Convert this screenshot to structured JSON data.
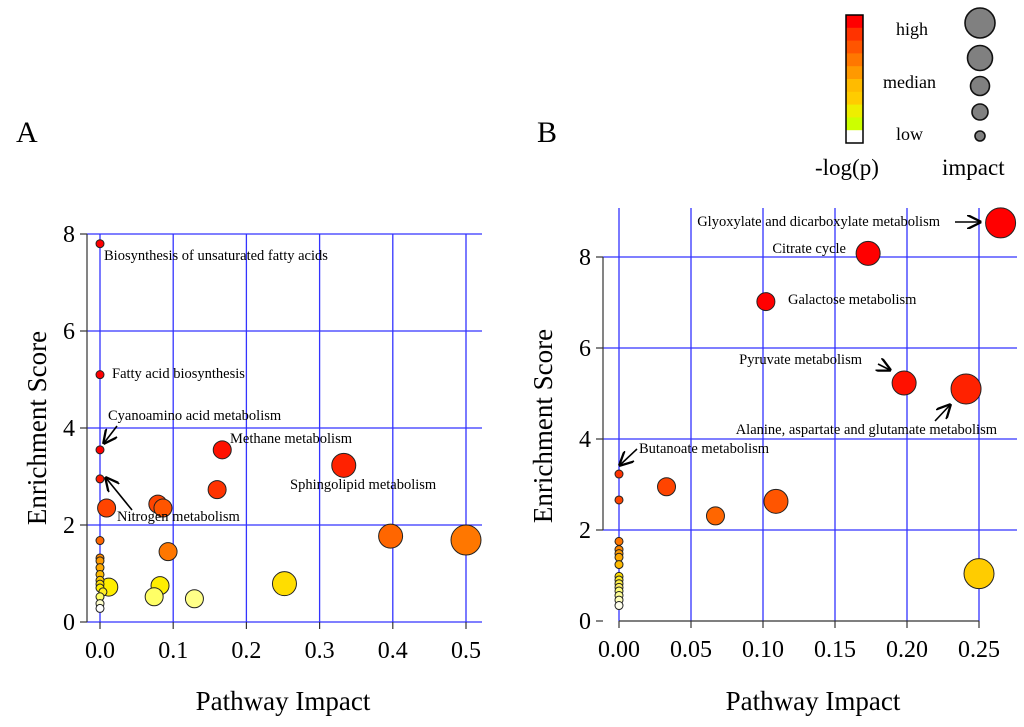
{
  "figure": {
    "legend": {
      "color_title": "-log(p)",
      "size_title": "impact",
      "color_levels": [
        "high",
        "median",
        "low"
      ],
      "color_scale": [
        "#ff0000",
        "#ff3300",
        "#ff5500",
        "#ff7700",
        "#ff9900",
        "#ffbb00",
        "#ffcc00",
        "#eeee00",
        "#ccff00",
        "#ffffff"
      ],
      "circle_fill": "#808080",
      "size_levels": 5
    },
    "gridline_color": "#3333ff"
  },
  "chart_data": [
    {
      "type": "scatter",
      "panel": "A",
      "xlabel": "Pathway Impact",
      "ylabel": "Enrichment Score",
      "xlim": [
        0,
        0.5
      ],
      "ylim": [
        0,
        8
      ],
      "x_ticks": [
        "0.0",
        "0.1",
        "0.2",
        "0.3",
        "0.4",
        "0.5"
      ],
      "x_tick_values": [
        0,
        0.1,
        0.2,
        0.3,
        0.4,
        0.5
      ],
      "y_ticks": [
        "0",
        "2",
        "4",
        "6",
        "8"
      ],
      "y_tick_values": [
        0,
        2,
        4,
        6,
        8
      ],
      "grid": true,
      "points": [
        {
          "x": 0.0,
          "y": 7.8,
          "color": "#ff0000",
          "impact_size": 1,
          "label": "Biosynthesis of unsaturated fatty acids"
        },
        {
          "x": 0.0,
          "y": 5.1,
          "color": "#ff0000",
          "impact_size": 1,
          "label": "Fatty acid biosynthesis"
        },
        {
          "x": 0.0,
          "y": 3.55,
          "color": "#ff0000",
          "impact_size": 1,
          "label": "Cyanoamino acid metabolism"
        },
        {
          "x": 0.0,
          "y": 2.95,
          "color": "#ff1a00",
          "impact_size": 1,
          "label": "Nitrogen metabolism"
        },
        {
          "x": 0.009,
          "y": 2.35,
          "color": "#ff4400",
          "impact_size": 2
        },
        {
          "x": 0.0,
          "y": 1.68,
          "color": "#ff6600",
          "impact_size": 1
        },
        {
          "x": 0.0,
          "y": 1.32,
          "color": "#ff8800",
          "impact_size": 1
        },
        {
          "x": 0.0,
          "y": 1.26,
          "color": "#ff9900",
          "impact_size": 1
        },
        {
          "x": 0.0,
          "y": 1.12,
          "color": "#ffaa00",
          "impact_size": 1
        },
        {
          "x": 0.0,
          "y": 0.98,
          "color": "#ffbb00",
          "impact_size": 1
        },
        {
          "x": 0.0,
          "y": 0.86,
          "color": "#ffcc00",
          "impact_size": 1
        },
        {
          "x": 0.0,
          "y": 0.78,
          "color": "#ffdd00",
          "impact_size": 1
        },
        {
          "x": 0.0,
          "y": 0.7,
          "color": "#ffee00",
          "impact_size": 1
        },
        {
          "x": 0.012,
          "y": 0.72,
          "color": "#ffee00",
          "impact_size": 2
        },
        {
          "x": 0.004,
          "y": 0.62,
          "color": "#ffee22",
          "impact_size": 1
        },
        {
          "x": 0.0,
          "y": 0.52,
          "color": "#ffff66",
          "impact_size": 1
        },
        {
          "x": 0.0,
          "y": 0.38,
          "color": "#ffffcc",
          "impact_size": 1
        },
        {
          "x": 0.0,
          "y": 0.28,
          "color": "#ffffff",
          "impact_size": 1
        },
        {
          "x": 0.079,
          "y": 2.43,
          "color": "#ff4400",
          "impact_size": 2
        },
        {
          "x": 0.086,
          "y": 2.35,
          "color": "#ff5500",
          "impact_size": 2
        },
        {
          "x": 0.093,
          "y": 1.45,
          "color": "#ff7700",
          "impact_size": 2
        },
        {
          "x": 0.082,
          "y": 0.75,
          "color": "#ffee00",
          "impact_size": 2
        },
        {
          "x": 0.074,
          "y": 0.52,
          "color": "#ffff66",
          "impact_size": 2
        },
        {
          "x": 0.129,
          "y": 0.48,
          "color": "#ffff88",
          "impact_size": 2
        },
        {
          "x": 0.167,
          "y": 3.55,
          "color": "#ff1100",
          "impact_size": 2,
          "label": "Methane metabolism"
        },
        {
          "x": 0.16,
          "y": 2.73,
          "color": "#ff3300",
          "impact_size": 2
        },
        {
          "x": 0.252,
          "y": 0.79,
          "color": "#ffdd00",
          "impact_size": 3
        },
        {
          "x": 0.333,
          "y": 3.23,
          "color": "#ff2200",
          "impact_size": 3,
          "label": "Sphingolipid metabolism"
        },
        {
          "x": 0.397,
          "y": 1.77,
          "color": "#ff6600",
          "impact_size": 3
        },
        {
          "x": 0.5,
          "y": 1.69,
          "color": "#ff7700",
          "impact_size": 4
        }
      ],
      "annotations": [
        {
          "text": "Biosynthesis of unsaturated fatty acids",
          "arrow": false
        },
        {
          "text": "Fatty acid biosynthesis",
          "arrow": false
        },
        {
          "text": "Cyanoamino acid metabolism",
          "arrow": true
        },
        {
          "text": "Methane metabolism",
          "arrow": false
        },
        {
          "text": "Sphingolipid metabolism",
          "arrow": false
        },
        {
          "text": "Nitrogen metabolism",
          "arrow": true
        }
      ]
    },
    {
      "type": "scatter",
      "panel": "B",
      "xlabel": "Pathway Impact",
      "ylabel": "Enrichment Score",
      "xlim": [
        0,
        0.25
      ],
      "ylim": [
        0,
        8
      ],
      "x_ticks": [
        "0.00",
        "0.05",
        "0.10",
        "0.15",
        "0.20",
        "0.25"
      ],
      "x_tick_values": [
        0,
        0.05,
        0.1,
        0.15,
        0.2,
        0.25
      ],
      "y_ticks": [
        "0",
        "2",
        "4",
        "6",
        "8"
      ],
      "y_tick_values": [
        0,
        2,
        4,
        6,
        8
      ],
      "grid": true,
      "points": [
        {
          "x": 0.265,
          "y": 8.75,
          "color": "#ff0000",
          "impact_size": 4,
          "label": "Glyoxylate and dicarboxylate metabolism"
        },
        {
          "x": 0.173,
          "y": 8.08,
          "color": "#ff0000",
          "impact_size": 3,
          "label": "Citrate cycle"
        },
        {
          "x": 0.102,
          "y": 7.02,
          "color": "#ff0000",
          "impact_size": 2,
          "label": "Galactose metabolism"
        },
        {
          "x": 0.198,
          "y": 5.23,
          "color": "#ff1100",
          "impact_size": 3,
          "label": "Pyruvate metabolism"
        },
        {
          "x": 0.241,
          "y": 5.1,
          "color": "#ff2200",
          "impact_size": 4,
          "label": "Alanine, aspartate and glutamate metabolism"
        },
        {
          "x": 0.0,
          "y": 3.23,
          "color": "#ff3300",
          "impact_size": 1,
          "label": "Butanoate metabolism"
        },
        {
          "x": 0.0,
          "y": 2.66,
          "color": "#ff4400",
          "impact_size": 1
        },
        {
          "x": 0.033,
          "y": 2.95,
          "color": "#ff4400",
          "impact_size": 2
        },
        {
          "x": 0.067,
          "y": 2.31,
          "color": "#ff6600",
          "impact_size": 2
        },
        {
          "x": 0.109,
          "y": 2.63,
          "color": "#ff5500",
          "impact_size": 3
        },
        {
          "x": 0.25,
          "y": 1.04,
          "color": "#ffcc00",
          "impact_size": 4
        },
        {
          "x": 0.0,
          "y": 1.75,
          "color": "#ff7700",
          "impact_size": 1
        },
        {
          "x": 0.0,
          "y": 1.57,
          "color": "#ff8800",
          "impact_size": 1
        },
        {
          "x": 0.0,
          "y": 1.48,
          "color": "#ff9900",
          "impact_size": 1
        },
        {
          "x": 0.0,
          "y": 1.4,
          "color": "#ffaa00",
          "impact_size": 1
        },
        {
          "x": 0.0,
          "y": 1.24,
          "color": "#ffbb00",
          "impact_size": 1
        },
        {
          "x": 0.0,
          "y": 0.98,
          "color": "#ffdd00",
          "impact_size": 1
        },
        {
          "x": 0.0,
          "y": 0.9,
          "color": "#ffee22",
          "impact_size": 1
        },
        {
          "x": 0.0,
          "y": 0.82,
          "color": "#ffee44",
          "impact_size": 1
        },
        {
          "x": 0.0,
          "y": 0.74,
          "color": "#ffee66",
          "impact_size": 1
        },
        {
          "x": 0.0,
          "y": 0.66,
          "color": "#ffff77",
          "impact_size": 1
        },
        {
          "x": 0.0,
          "y": 0.56,
          "color": "#ffff99",
          "impact_size": 1
        },
        {
          "x": 0.0,
          "y": 0.46,
          "color": "#ffffbb",
          "impact_size": 1
        },
        {
          "x": 0.0,
          "y": 0.34,
          "color": "#ffffee",
          "impact_size": 1
        }
      ],
      "annotations": [
        {
          "text": "Glyoxylate and dicarboxylate metabolism",
          "arrow": true
        },
        {
          "text": "Citrate cycle",
          "arrow": false
        },
        {
          "text": "Galactose metabolism",
          "arrow": false
        },
        {
          "text": "Pyruvate metabolism",
          "arrow": true
        },
        {
          "text": "Alanine, aspartate and glutamate metabolism",
          "arrow": true
        },
        {
          "text": "Butanoate metabolism",
          "arrow": true
        }
      ]
    }
  ]
}
